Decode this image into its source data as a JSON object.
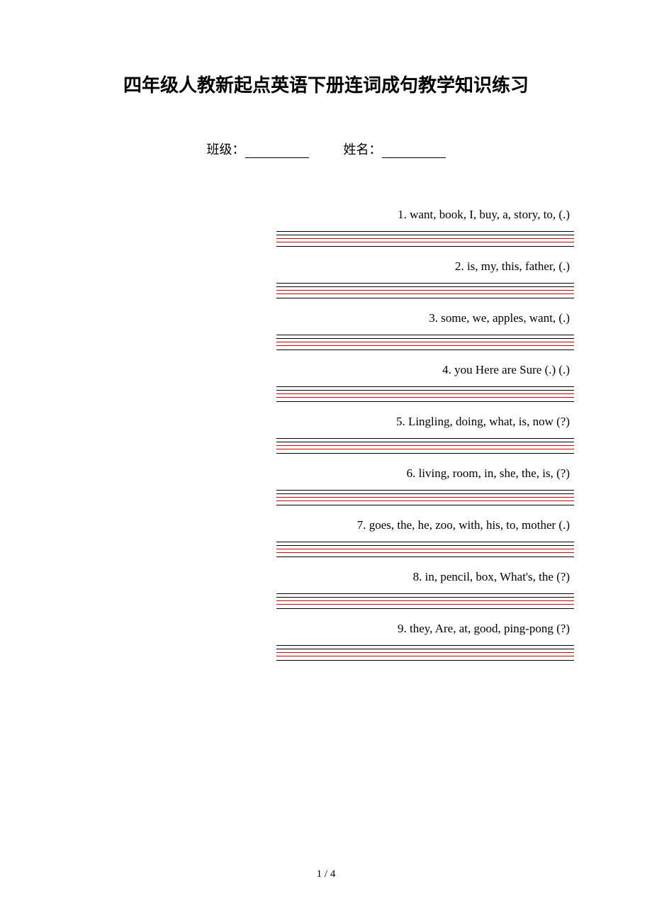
{
  "title": "四年级人教新起点英语下册连词成句教学知识练习",
  "info": {
    "class_label": "班级：",
    "name_label": "姓名："
  },
  "questions": [
    {
      "text": "1. want, book, I, buy, a, story, to, (.)"
    },
    {
      "text": "2. is, my, this, father, (.)"
    },
    {
      "text": "3. some, we, apples, want, (.)"
    },
    {
      "text": "4. you   Here   are   Sure   (.)   (.)"
    },
    {
      "text": "5. Lingling, doing, what, is, now (?)"
    },
    {
      "text": "6. living, room, in, she, the, is, (?)"
    },
    {
      "text": "7. goes, the, he, zoo, with, his, to, mother (.)"
    },
    {
      "text": "8. in, pencil, box, What's, the (?)"
    },
    {
      "text": "9. they, Are, at, good, ping-pong (?)"
    }
  ],
  "page_number": "1 / 4",
  "style": {
    "background_color": "#ffffff",
    "text_color": "#000000",
    "line_black": "#000000",
    "line_red": "#cc0000",
    "title_fontsize": 26,
    "body_fontsize": 18,
    "question_fontsize": 17,
    "content_width": 420,
    "content_left_margin": 390
  }
}
